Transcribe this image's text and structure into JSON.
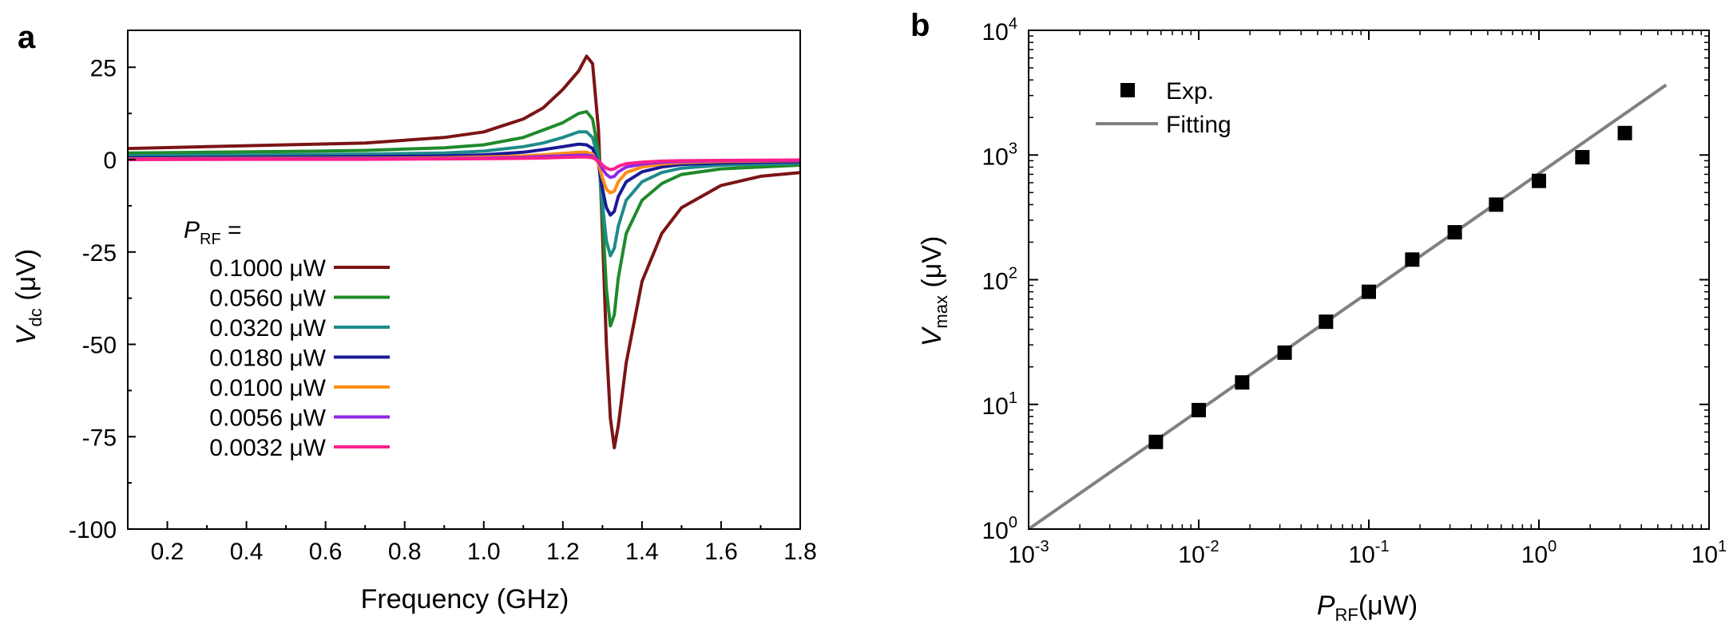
{
  "panel_a": {
    "label": "a",
    "legend_header_sym": "P",
    "legend_header_sub": "RF",
    "legend_header_eq": " ="
  },
  "panel_b": {
    "label": "b"
  },
  "colors": {
    "0.1000": "#7b1416",
    "0.0560": "#1f8a2c",
    "0.0320": "#1f8a8a",
    "0.0180": "#1a1a96",
    "0.0100": "#ff8c14",
    "0.0056": "#8c28e6",
    "0.0032": "#ff1e8c",
    "fit": "#808080",
    "exp": "#000000"
  },
  "chart_data": [
    {
      "type": "line",
      "panel": "a",
      "xlabel": "Frequency (GHz)",
      "ylabel_sym": "V",
      "ylabel_sub": "dc",
      "ylabel_unit": " (μV)",
      "xlim": [
        0.1,
        1.8
      ],
      "ylim": [
        -100,
        35
      ],
      "xticks": [
        0.2,
        0.4,
        0.6,
        0.8,
        1.0,
        1.2,
        1.4,
        1.6,
        1.8
      ],
      "xtick_labels": [
        "0.2",
        "0.4",
        "0.6",
        "0.8",
        "1.0",
        "1.2",
        "1.4",
        "1.6",
        "1.8"
      ],
      "yticks": [
        25,
        0,
        -25,
        -50,
        -75,
        -100
      ],
      "ytick_labels": [
        "25",
        "0",
        "-25",
        "-50",
        "-75",
        "-100"
      ],
      "legend_position": "center-left",
      "series": [
        {
          "name": "0.1000 μW",
          "color_key": "0.1000",
          "x": [
            0.1,
            0.3,
            0.5,
            0.7,
            0.9,
            1.0,
            1.1,
            1.15,
            1.2,
            1.24,
            1.26,
            1.275,
            1.29,
            1.3,
            1.31,
            1.32,
            1.33,
            1.34,
            1.36,
            1.4,
            1.45,
            1.5,
            1.6,
            1.7,
            1.8
          ],
          "y": [
            3,
            3.5,
            4,
            4.5,
            6,
            7.5,
            11,
            14,
            19,
            24,
            28,
            26,
            8,
            -20,
            -50,
            -70,
            -78,
            -72,
            -55,
            -33,
            -20,
            -13,
            -7,
            -4.5,
            -3.5
          ]
        },
        {
          "name": "0.0560 μW",
          "color_key": "0.0560",
          "x": [
            0.1,
            0.3,
            0.5,
            0.7,
            0.9,
            1.0,
            1.1,
            1.15,
            1.2,
            1.24,
            1.26,
            1.275,
            1.29,
            1.3,
            1.31,
            1.32,
            1.33,
            1.34,
            1.36,
            1.4,
            1.45,
            1.5,
            1.6,
            1.7,
            1.8
          ],
          "y": [
            1.8,
            2,
            2.2,
            2.5,
            3.2,
            4,
            6,
            8,
            10,
            12.5,
            13,
            11,
            2,
            -15,
            -35,
            -45,
            -42,
            -32,
            -20,
            -11,
            -6.5,
            -4,
            -2.5,
            -2,
            -1.5
          ]
        },
        {
          "name": "0.0320 μW",
          "color_key": "0.0320",
          "x": [
            0.1,
            0.3,
            0.5,
            0.7,
            0.9,
            1.0,
            1.1,
            1.15,
            1.2,
            1.24,
            1.26,
            1.275,
            1.29,
            1.3,
            1.31,
            1.32,
            1.33,
            1.34,
            1.36,
            1.4,
            1.45,
            1.5,
            1.6,
            1.7,
            1.8
          ],
          "y": [
            1,
            1.2,
            1.3,
            1.5,
            1.8,
            2.3,
            3.5,
            4.5,
            6,
            7.5,
            7.5,
            6,
            0,
            -12,
            -22,
            -26,
            -24,
            -18,
            -11,
            -6,
            -3.5,
            -2.3,
            -1.5,
            -1.2,
            -1
          ]
        },
        {
          "name": "0.0180 μW",
          "color_key": "0.0180",
          "x": [
            0.1,
            0.3,
            0.5,
            0.7,
            0.9,
            1.0,
            1.1,
            1.15,
            1.2,
            1.24,
            1.26,
            1.275,
            1.29,
            1.3,
            1.31,
            1.32,
            1.33,
            1.34,
            1.36,
            1.4,
            1.45,
            1.5,
            1.6,
            1.7,
            1.8
          ],
          "y": [
            0.5,
            0.6,
            0.7,
            0.8,
            1,
            1.3,
            2,
            2.7,
            3.5,
            4.2,
            4,
            3,
            -1,
            -8,
            -13,
            -15,
            -14,
            -10,
            -6,
            -3.3,
            -2,
            -1.3,
            -0.9,
            -0.7,
            -0.6
          ]
        },
        {
          "name": "0.0100 μW",
          "color_key": "0.0100",
          "x": [
            0.1,
            0.3,
            0.5,
            0.7,
            0.9,
            1.0,
            1.1,
            1.15,
            1.2,
            1.24,
            1.26,
            1.275,
            1.29,
            1.3,
            1.31,
            1.32,
            1.33,
            1.34,
            1.36,
            1.4,
            1.45,
            1.5,
            1.6,
            1.7,
            1.8
          ],
          "y": [
            0.2,
            0.3,
            0.35,
            0.4,
            0.5,
            0.7,
            1,
            1.3,
            1.7,
            2,
            2,
            1.5,
            -1,
            -5,
            -8,
            -9,
            -8.5,
            -6,
            -3.5,
            -2,
            -1.2,
            -0.8,
            -0.5,
            -0.4,
            -0.3
          ]
        },
        {
          "name": "0.0056 μW",
          "color_key": "0.0056",
          "x": [
            0.1,
            0.3,
            0.5,
            0.7,
            0.9,
            1.0,
            1.1,
            1.15,
            1.2,
            1.24,
            1.26,
            1.275,
            1.29,
            1.3,
            1.31,
            1.32,
            1.33,
            1.34,
            1.36,
            1.4,
            1.45,
            1.5,
            1.6,
            1.7,
            1.8
          ],
          "y": [
            0.1,
            0.15,
            0.2,
            0.25,
            0.3,
            0.4,
            0.6,
            0.8,
            1,
            1.2,
            1.2,
            0.9,
            -0.5,
            -2.5,
            -4,
            -4.8,
            -4.5,
            -3.3,
            -2,
            -1.2,
            -0.7,
            -0.5,
            -0.3,
            -0.25,
            -0.2
          ]
        },
        {
          "name": "0.0032 μW",
          "color_key": "0.0032",
          "x": [
            0.1,
            0.3,
            0.5,
            0.7,
            0.9,
            1.0,
            1.1,
            1.15,
            1.2,
            1.24,
            1.26,
            1.275,
            1.29,
            1.3,
            1.31,
            1.32,
            1.33,
            1.34,
            1.36,
            1.4,
            1.45,
            1.5,
            1.6,
            1.7,
            1.8
          ],
          "y": [
            0,
            0.05,
            0.1,
            0.1,
            0.2,
            0.25,
            0.35,
            0.45,
            0.6,
            0.7,
            0.7,
            0.5,
            -0.3,
            -1.5,
            -2.3,
            -2.7,
            -2.5,
            -1.8,
            -1.1,
            -0.7,
            -0.4,
            -0.3,
            -0.2,
            -0.15,
            -0.1
          ]
        }
      ]
    },
    {
      "type": "scatter",
      "panel": "b",
      "xlabel_sym": "P",
      "xlabel_sub": "RF",
      "xlabel_unit": "(μW)",
      "ylabel_sym": "V",
      "ylabel_sub": "max",
      "ylabel_unit": " (μV)",
      "xscale": "log",
      "yscale": "log",
      "xlim": [
        0.001,
        10
      ],
      "ylim": [
        1,
        10000
      ],
      "xticks": [
        0.001,
        0.01,
        0.1,
        1,
        10
      ],
      "xtick_base": "10",
      "xtick_exponents": [
        "-3",
        "-2",
        "-1",
        "0",
        "1"
      ],
      "yticks": [
        1,
        10,
        100,
        1000,
        10000
      ],
      "ytick_base": "10",
      "ytick_exponents": [
        "0",
        "1",
        "2",
        "3",
        "4"
      ],
      "legend_position": "top-left",
      "series": [
        {
          "name": "Exp.",
          "kind": "markers",
          "x": [
            0.0056,
            0.01,
            0.018,
            0.032,
            0.056,
            0.1,
            0.18,
            0.32,
            0.56,
            1.0,
            1.8,
            3.2
          ],
          "y": [
            5,
            9,
            15,
            26,
            46,
            80,
            145,
            240,
            400,
            620,
            960,
            1500
          ]
        },
        {
          "name": "Fitting",
          "kind": "line",
          "x": [
            0.001,
            5.6
          ],
          "y": [
            1,
            3650
          ]
        }
      ]
    }
  ]
}
